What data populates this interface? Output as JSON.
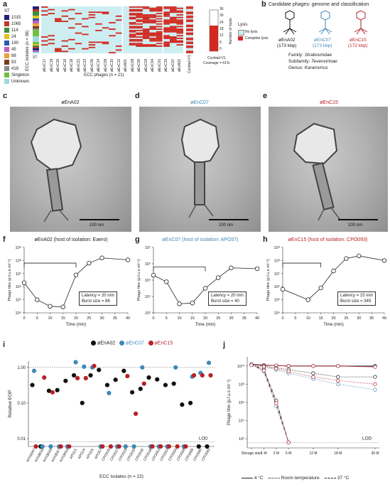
{
  "panel_labels": {
    "a": "a",
    "b": "b",
    "c": "c",
    "d": "d",
    "e": "e",
    "f": "f",
    "g": "g",
    "h": "h",
    "i": "i",
    "j": "j"
  },
  "colors": {
    "eA02": "#111111",
    "eC07": "#3e88b8",
    "eC15": "#b82126",
    "lysis": "#d12a22",
    "nolysis": "#cdeef1"
  },
  "panel_a": {
    "st_title": "ST",
    "st_legend": [
      {
        "label": "1015",
        "color": "#1f1f7a"
      },
      {
        "label": "1065",
        "color": "#c0392b"
      },
      {
        "label": "114",
        "color": "#3a8f3a"
      },
      {
        "label": "24",
        "color": "#e0c21e"
      },
      {
        "label": "190",
        "color": "#2c58b0"
      },
      {
        "label": "45",
        "color": "#c05fc0"
      },
      {
        "label": "88",
        "color": "#e8a33a"
      },
      {
        "label": "93",
        "color": "#7a3a1a"
      },
      {
        "label": "418",
        "color": "#8a8a8a"
      },
      {
        "label": "Singleton",
        "color": "#6fbf3f"
      },
      {
        "label": "Unknown",
        "color": "#a0d8e0"
      }
    ],
    "ylabel": "ECC isolates (n = 36)",
    "st_col_label": "ST",
    "xlabel": "ECC phages (n = 21)",
    "phages": [
      "øEnC17",
      "øEnC19",
      "øEnC20",
      "øEnC16",
      "øEnC18",
      "øEnC21",
      "øEnC22",
      "øEnC05",
      "øEnC14",
      "øEnC09",
      "øEnC10",
      "øEnC12",
      "øEnA01",
      "øEnC08",
      "øEnC06",
      "øEnC03",
      "øEnC04",
      "øEnC01",
      "øEnC15",
      "øEnC07",
      "øEnA02"
    ],
    "cocktail_label": "Cocktail-V1",
    "count_axis_label": "Number of hosts",
    "count_ticks": [
      "36",
      "30",
      "24",
      "18",
      "12",
      "6",
      "0"
    ],
    "legend_title": "Lysis",
    "legend_nolysis": "No lysis",
    "legend_lysis": "Complete lysis",
    "cocktail_caption": "Cocktail-V1",
    "coverage": "Coverage = 61%"
  },
  "panel_b": {
    "title": "Candidate phages: genome and classification",
    "phages": [
      {
        "name": "øEnA02",
        "size": "(173 kbp)"
      },
      {
        "name": "øEnC07",
        "size": "(173 kbp)"
      },
      {
        "name": "øEnC15",
        "size": "(172 kbp)"
      }
    ],
    "family_label": "Family:",
    "family": "Straboviridae",
    "subfamily_label": "Subfamily:",
    "subfamily": "Tevenvirinae",
    "genus_label": "Genus:",
    "genus": "Karamvirus"
  },
  "tem": [
    {
      "title": "øEnA02",
      "scale": "100 nm"
    },
    {
      "title": "øEnC07",
      "scale": "100 nm"
    },
    {
      "title": "øEnC15",
      "scale": "100 nm"
    }
  ],
  "growth": [
    {
      "title": "øEnA02 (host of isolation: Eaero)",
      "latency": "Latency = 20 min",
      "burst": "Burst size = 86",
      "ylabel": "Phage titre (p.f.u.s ml⁻¹)",
      "xlabel": "Time (min)",
      "points": [
        [
          0,
          6.3
        ],
        [
          5,
          5.0
        ],
        [
          10,
          4.5
        ],
        [
          15,
          4.45
        ],
        [
          20,
          6.9
        ],
        [
          25,
          7.8
        ],
        [
          30,
          8.2
        ],
        [
          40,
          8.05
        ]
      ],
      "bracket": [
        0,
        20
      ],
      "ymin": 4,
      "ymax": 9,
      "ticks": [
        "10⁴",
        "10⁵",
        "10⁶",
        "10⁷",
        "10⁸",
        "10⁹"
      ]
    },
    {
      "title": "øEnC07 (host of isolation: APO57)",
      "latency": "Latency = 20 min",
      "burst": "Burst size = 40",
      "ylabel": "Phage titre (p.f.u.s ml⁻¹)",
      "xlabel": "Time (min)",
      "points": [
        [
          0,
          5.3
        ],
        [
          5,
          4.9
        ],
        [
          10,
          3.55
        ],
        [
          15,
          3.6
        ],
        [
          20,
          4.5
        ],
        [
          25,
          5.15
        ],
        [
          30,
          5.75
        ],
        [
          40,
          5.7
        ]
      ],
      "bracket": [
        0,
        20
      ],
      "ymin": 3,
      "ymax": 7,
      "ticks": [
        "10³",
        "10⁴",
        "10⁵",
        "10⁶",
        "10⁷"
      ]
    },
    {
      "title": "øEnC15 (host of isolation: CPO093)",
      "latency": "Latency = 15 min",
      "burst": "Burst size = 349",
      "ylabel": "Phage titre (p.f.u.s ml⁻¹)",
      "xlabel": "Time (min)",
      "points": [
        [
          0,
          5.8
        ],
        [
          10,
          5.0
        ],
        [
          15,
          5.9
        ],
        [
          20,
          7.2
        ],
        [
          25,
          8.15
        ],
        [
          30,
          8.35
        ],
        [
          40,
          8.0
        ]
      ],
      "bracket": [
        0,
        15
      ],
      "ymin": 4,
      "ymax": 9,
      "ticks": [
        "10⁴",
        "10⁵",
        "10⁶",
        "10⁷",
        "10⁸",
        "10⁹"
      ]
    }
  ],
  "x_ticks_growth": [
    "0",
    "5",
    "10",
    "15",
    "20",
    "25",
    "30",
    "35",
    "40"
  ],
  "chart_data": [
    {
      "type": "scatter",
      "title": "",
      "xlabel": "ECC isolates (n = 22)",
      "ylabel": "Relative EOP",
      "categories": [
        "AH16097",
        "AH18028",
        "AH18049",
        "AH18057",
        "AH19004",
        "APO21",
        "APO24",
        "APO25",
        "APO57",
        "CPO026",
        "CPO027",
        "CPO029",
        "CPO030",
        "CPO036",
        "CPO038",
        "CPO051",
        "CPO053",
        "CPO056",
        "CPO058",
        "CPO089",
        "CPO090",
        "CPO093"
      ],
      "series": [
        {
          "name": "øEnA02",
          "values": [
            0.32,
            0.006,
            0.22,
            0.23,
            0.42,
            0.6,
            0.1,
            0.6,
            0.85,
            0.32,
            0.45,
            0.8,
            0.2,
            0.25,
            0.52,
            0.46,
            0.32,
            0.35,
            0.09,
            0.1,
            0.006,
            0.006
          ]
        },
        {
          "name": "øEnC07",
          "values": [
            0.8,
            0.006,
            0.006,
            0.006,
            0.006,
            1.4,
            1.05,
            1.0,
            0.006,
            0.19,
            0.006,
            0.006,
            0.006,
            1.0,
            0.006,
            0.006,
            0.006,
            1.0,
            0.006,
            0.55,
            0.7,
            1.35
          ]
        },
        {
          "name": "øEnC15",
          "values": [
            0.006,
            0.52,
            0.2,
            0.006,
            0.006,
            0.5,
            0.5,
            1.1,
            0.006,
            0.006,
            0.006,
            0.57,
            0.05,
            0.35,
            0.006,
            0.006,
            0.006,
            0.006,
            0.006,
            0.6,
            0.6,
            0.6
          ]
        }
      ],
      "yscale": "log",
      "ylim": [
        0.006,
        1.5
      ],
      "yticks": [
        "1.00",
        "0.10",
        "0.01"
      ],
      "lod_label": "LOD"
    },
    {
      "type": "line",
      "title": "",
      "ylabel": "Phage titre (p.f.u.s ml⁻¹)",
      "yscale": "log",
      "ylim": [
        1,
        11
      ],
      "xticks": [
        "Storage start",
        "1 M",
        "3 M",
        "6 M",
        "12 M",
        "18 M",
        "30 M"
      ],
      "lod_label": "LOD",
      "legend": [
        {
          "label": "4 °C",
          "style": "solid"
        },
        {
          "label": "Room temperature",
          "style": "dotted"
        },
        {
          "label": "37 °C",
          "style": "dashdot"
        }
      ]
    }
  ]
}
